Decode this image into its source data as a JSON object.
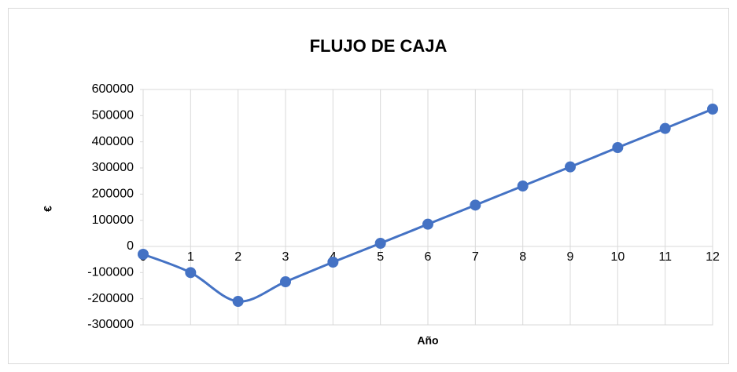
{
  "chart_data": {
    "type": "line",
    "title": "FLUJO DE CAJA",
    "x_label": "Año",
    "y_label": "€",
    "x": [
      0,
      1,
      2,
      3,
      4,
      5,
      6,
      7,
      8,
      9,
      10,
      11,
      12
    ],
    "series": [
      {
        "name": "Flujo de caja",
        "color": "#4472c4",
        "values": [
          -30000,
          -100000,
          -210000,
          -135000,
          -60000,
          12000,
          85000,
          158000,
          231000,
          304000,
          378000,
          451000,
          525000
        ]
      }
    ],
    "xlim": [
      0,
      12
    ],
    "xticks": [
      0,
      1,
      2,
      3,
      4,
      5,
      6,
      7,
      8,
      9,
      10,
      11,
      12
    ],
    "ylim": [
      -300000,
      600000
    ],
    "yticks": [
      -300000,
      -200000,
      -100000,
      0,
      100000,
      200000,
      300000,
      400000,
      500000,
      600000
    ],
    "grid": "x",
    "smooth": true
  }
}
